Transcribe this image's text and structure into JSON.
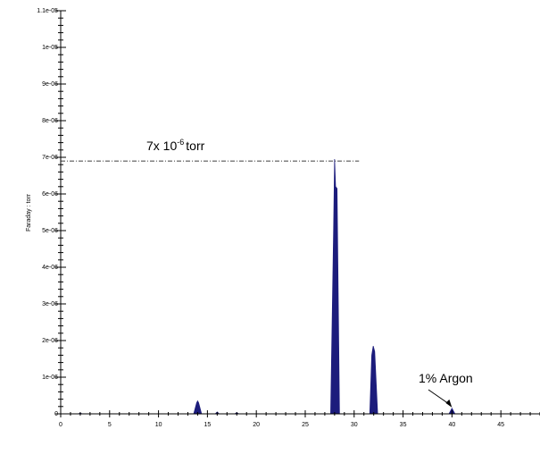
{
  "chart_data": {
    "type": "area",
    "y_axis_label": "Faraday : torr",
    "x": [
      1,
      1.8,
      2,
      2.2,
      3,
      13.6,
      13.9,
      14,
      14.1,
      14.4,
      15.8,
      16,
      16.2,
      17.8,
      18,
      18.2,
      27.6,
      27.9,
      28,
      28.1,
      28.25,
      28.5,
      31.6,
      31.8,
      31.95,
      32.1,
      32.4,
      39.7,
      40,
      40.3,
      49
    ],
    "values": [
      0,
      0,
      2e-08,
      0,
      0,
      0,
      3e-07,
      3.5e-07,
      3e-07,
      0,
      0,
      5e-08,
      0,
      0,
      3e-08,
      0,
      0,
      5e-06,
      6.95e-06,
      6.2e-06,
      6.15e-06,
      0,
      0,
      1.6e-06,
      1.85e-06,
      1.7e-06,
      0,
      0,
      1.5e-07,
      0,
      0
    ],
    "color": "#1c1c7c",
    "xlim": [
      0,
      49
    ],
    "xticks": [
      0,
      5,
      10,
      15,
      20,
      25,
      30,
      35,
      40,
      45
    ],
    "xminorticks": [
      1,
      2,
      3,
      4,
      6,
      7,
      8,
      9,
      11,
      12,
      13,
      14,
      16,
      17,
      18,
      19,
      21,
      22,
      23,
      24,
      26,
      27,
      28,
      29,
      31,
      32,
      33,
      34,
      36,
      37,
      38,
      39,
      41,
      42,
      43,
      44,
      46,
      47,
      48,
      49
    ],
    "ylim": [
      0,
      1.1e-05
    ],
    "yticks": [
      {
        "value": 0,
        "label": "0"
      },
      {
        "value": 1e-06,
        "label": "1e-06"
      },
      {
        "value": 2e-06,
        "label": "2e-06"
      },
      {
        "value": 3e-06,
        "label": "3e-06"
      },
      {
        "value": 4e-06,
        "label": "4e-06"
      },
      {
        "value": 5e-06,
        "label": "5e-06"
      },
      {
        "value": 6e-06,
        "label": "6e-06"
      },
      {
        "value": 7e-06,
        "label": "7e-06"
      },
      {
        "value": 8e-06,
        "label": "8e-06"
      },
      {
        "value": 9e-06,
        "label": "9e-06"
      },
      {
        "value": 1e-05,
        "label": "1e-05"
      },
      {
        "value": 1.1e-05,
        "label": "1.1e-05"
      }
    ],
    "yminorticks": [
      2e-07,
      4e-07,
      6e-07,
      8e-07,
      1.2e-06,
      1.4e-06,
      1.6e-06,
      1.8e-06,
      2.2e-06,
      2.4e-06,
      2.6e-06,
      2.8e-06,
      3.2e-06,
      3.4e-06,
      3.6e-06,
      3.8e-06,
      4.2e-06,
      4.4e-06,
      4.6e-06,
      4.8e-06,
      5.2e-06,
      5.4e-06,
      5.6e-06,
      5.8e-06,
      6.2e-06,
      6.4e-06,
      6.6e-06,
      6.8e-06,
      7.2e-06,
      7.4e-06,
      7.6e-06,
      7.8e-06,
      8.2e-06,
      8.4e-06,
      8.6e-06,
      8.8e-06,
      9.2e-06,
      9.4e-06,
      9.6e-06,
      9.8e-06,
      1.02e-05,
      1.04e-05,
      1.06e-05,
      1.08e-05
    ],
    "reference_line": {
      "value": 6.9e-06,
      "x_end": 30.5,
      "text": "7x 10",
      "superscript": "-6",
      "unit": "torr"
    },
    "argon_annotation": {
      "text": "1% Argon",
      "x": 40,
      "value": 1.5e-07
    }
  }
}
